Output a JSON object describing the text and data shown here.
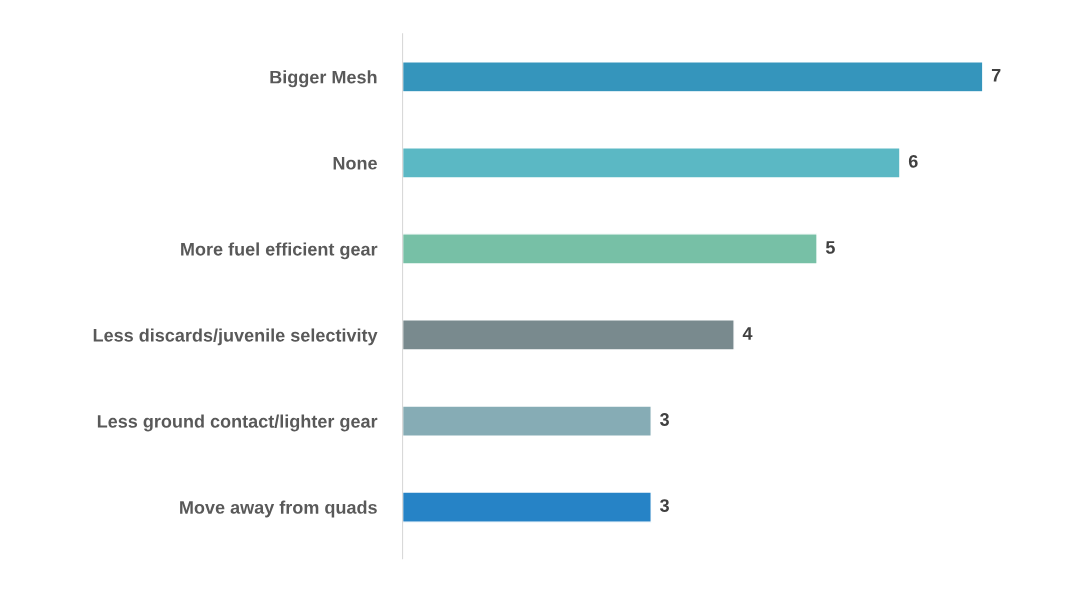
{
  "chart_data": {
    "type": "bar",
    "orientation": "horizontal",
    "categories": [
      "Bigger Mesh",
      "None",
      "More fuel efficient gear",
      "Less discards/juvenile selectivity",
      "Less ground contact/lighter gear",
      "Move away from quads"
    ],
    "values": [
      7,
      6,
      5,
      4,
      3,
      3
    ],
    "colors": [
      "#3595bc",
      "#5bb8c4",
      "#77c0a6",
      "#798a8e",
      "#86acb5",
      "#2683c6"
    ],
    "data_labels": true,
    "grid": false,
    "legend": false
  }
}
